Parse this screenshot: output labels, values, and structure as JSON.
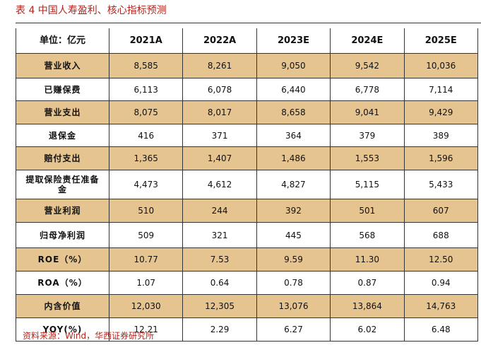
{
  "caption": "表 4  中国人寿盈利、核心指标预测",
  "source": "资料来源：Wind，华西证券研究所",
  "table": {
    "header": [
      "单位：亿元",
      "2021A",
      "2022A",
      "2023E",
      "2024E",
      "2025E"
    ],
    "rows": [
      {
        "label": "营业收入",
        "values": [
          "8,585",
          "8,261",
          "9,050",
          "9,542",
          "10,036"
        ],
        "shaded": true
      },
      {
        "label": "已赚保费",
        "values": [
          "6,113",
          "6,078",
          "6,440",
          "6,778",
          "7,114"
        ],
        "shaded": false
      },
      {
        "label": "营业支出",
        "values": [
          "8,075",
          "8,017",
          "8,658",
          "9,041",
          "9,429"
        ],
        "shaded": true
      },
      {
        "label": "退保金",
        "values": [
          "416",
          "371",
          "364",
          "379",
          "389"
        ],
        "shaded": false
      },
      {
        "label": "赔付支出",
        "values": [
          "1,365",
          "1,407",
          "1,486",
          "1,553",
          "1,596"
        ],
        "shaded": true
      },
      {
        "label": "提取保险责任准备金",
        "values": [
          "4,473",
          "4,612",
          "4,827",
          "5,115",
          "5,433"
        ],
        "shaded": false
      },
      {
        "label": "营业利润",
        "values": [
          "510",
          "244",
          "392",
          "501",
          "607"
        ],
        "shaded": true
      },
      {
        "label": "归母净利润",
        "values": [
          "509",
          "321",
          "445",
          "568",
          "688"
        ],
        "shaded": false
      },
      {
        "label": "ROE（%）",
        "values": [
          "10.77",
          "7.53",
          "9.59",
          "11.30",
          "12.50"
        ],
        "shaded": true
      },
      {
        "label": "ROA（%）",
        "values": [
          "1.07",
          "0.64",
          "0.78",
          "0.87",
          "0.94"
        ],
        "shaded": false
      },
      {
        "label": "内含价值",
        "values": [
          "12,030",
          "12,305",
          "13,076",
          "13,864",
          "14,763"
        ],
        "shaded": true
      },
      {
        "label": "YOY(%)",
        "values": [
          "12.21",
          "2.29",
          "6.27",
          "6.02",
          "6.48"
        ],
        "shaded": false
      }
    ]
  }
}
